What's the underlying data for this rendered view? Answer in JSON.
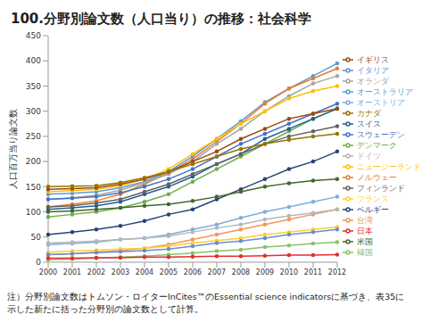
{
  "chart_data": {
    "type": "line",
    "title": "100.分野別論文数（人口当り）の推移：社会科学",
    "y_label": "人口百万当り論文数",
    "x": [
      "2000",
      "2001",
      "2002",
      "2003",
      "2004",
      "2005",
      "2006",
      "2007",
      "2008",
      "2009",
      "2010",
      "2011",
      "2012"
    ],
    "ylim": [
      0,
      450
    ],
    "yticks": [
      0,
      50,
      100,
      150,
      200,
      250,
      300,
      350,
      400,
      450
    ],
    "grid": false,
    "legend": "right",
    "notes": [
      "注）分野別論文数はトムソン・ロイターInCites™のEssential science indicatorsに基づき、表35に",
      "示した新たに括った分野別の論文数として計算。"
    ],
    "series": [
      {
        "name": "オーストラリア",
        "color": "#5B9BD5",
        "values": [
          135,
          137,
          140,
          148,
          160,
          180,
          210,
          245,
          280,
          318,
          345,
          370,
          395
        ]
      },
      {
        "name": "ノルウェー",
        "color": "#ED7D31",
        "values": [
          110,
          115,
          122,
          135,
          155,
          178,
          205,
          240,
          275,
          315,
          345,
          365,
          385
        ]
      },
      {
        "name": "オランダ",
        "color": "#A5A5A5",
        "values": [
          125,
          128,
          133,
          143,
          158,
          175,
          200,
          235,
          265,
          300,
          330,
          355,
          370
        ]
      },
      {
        "name": "ニュージーランド",
        "color": "#FFC000",
        "values": [
          140,
          142,
          145,
          152,
          165,
          185,
          215,
          245,
          275,
          300,
          325,
          340,
          350
        ]
      },
      {
        "name": "スウェーデン",
        "color": "#4472C4",
        "values": [
          125,
          127,
          130,
          138,
          150,
          165,
          185,
          210,
          235,
          255,
          275,
          295,
          315
        ]
      },
      {
        "name": "デンマーク",
        "color": "#70AD47",
        "values": [
          90,
          95,
          100,
          108,
          120,
          135,
          160,
          185,
          210,
          235,
          260,
          285,
          305
        ]
      },
      {
        "name": "スイス",
        "color": "#255E91",
        "values": [
          105,
          108,
          112,
          120,
          135,
          150,
          170,
          195,
          215,
          245,
          265,
          285,
          305
        ]
      },
      {
        "name": "イギリス",
        "color": "#9E480E",
        "values": [
          145,
          146,
          148,
          155,
          165,
          180,
          200,
          220,
          245,
          265,
          285,
          295,
          305
        ]
      },
      {
        "name": "フィンランド",
        "color": "#636363",
        "values": [
          110,
          112,
          118,
          125,
          140,
          155,
          175,
          195,
          215,
          235,
          250,
          260,
          270
        ]
      },
      {
        "name": "カナダ",
        "color": "#997300",
        "values": [
          150,
          151,
          152,
          158,
          168,
          180,
          195,
          210,
          225,
          235,
          243,
          250,
          255
        ]
      },
      {
        "name": "ベルギー",
        "color": "#264478",
        "values": [
          55,
          60,
          65,
          72,
          82,
          95,
          105,
          125,
          145,
          165,
          185,
          200,
          220
        ]
      },
      {
        "name": "米国",
        "color": "#43682B",
        "values": [
          100,
          102,
          105,
          108,
          112,
          115,
          122,
          130,
          140,
          150,
          157,
          162,
          165
        ]
      },
      {
        "name": "オーストリア",
        "color": "#7CAFDD",
        "values": [
          35,
          37,
          40,
          45,
          48,
          55,
          65,
          75,
          88,
          100,
          110,
          120,
          130
        ]
      },
      {
        "name": "台湾",
        "color": "#F1975A",
        "values": [
          15,
          17,
          20,
          23,
          28,
          35,
          45,
          55,
          65,
          75,
          85,
          95,
          105
        ]
      },
      {
        "name": "ドイツ",
        "color": "#B7B7B7",
        "values": [
          38,
          40,
          42,
          45,
          48,
          52,
          60,
          68,
          75,
          85,
          92,
          98,
          105
        ]
      },
      {
        "name": "フランス",
        "color": "#FFCD33",
        "values": [
          20,
          22,
          24,
          26,
          28,
          32,
          38,
          43,
          48,
          55,
          60,
          65,
          70
        ]
      },
      {
        "name": "イタリア",
        "color": "#698ED0",
        "values": [
          15,
          17,
          19,
          21,
          23,
          26,
          32,
          38,
          42,
          48,
          55,
          60,
          65
        ]
      },
      {
        "name": "韓国",
        "color": "#8CC168",
        "values": [
          5,
          6,
          8,
          10,
          12,
          15,
          18,
          22,
          25,
          30,
          33,
          37,
          40
        ]
      },
      {
        "name": "日本",
        "color": "#E03030",
        "values": [
          8,
          8,
          9,
          9,
          10,
          10,
          11,
          12,
          12,
          13,
          14,
          14,
          15
        ]
      }
    ]
  }
}
